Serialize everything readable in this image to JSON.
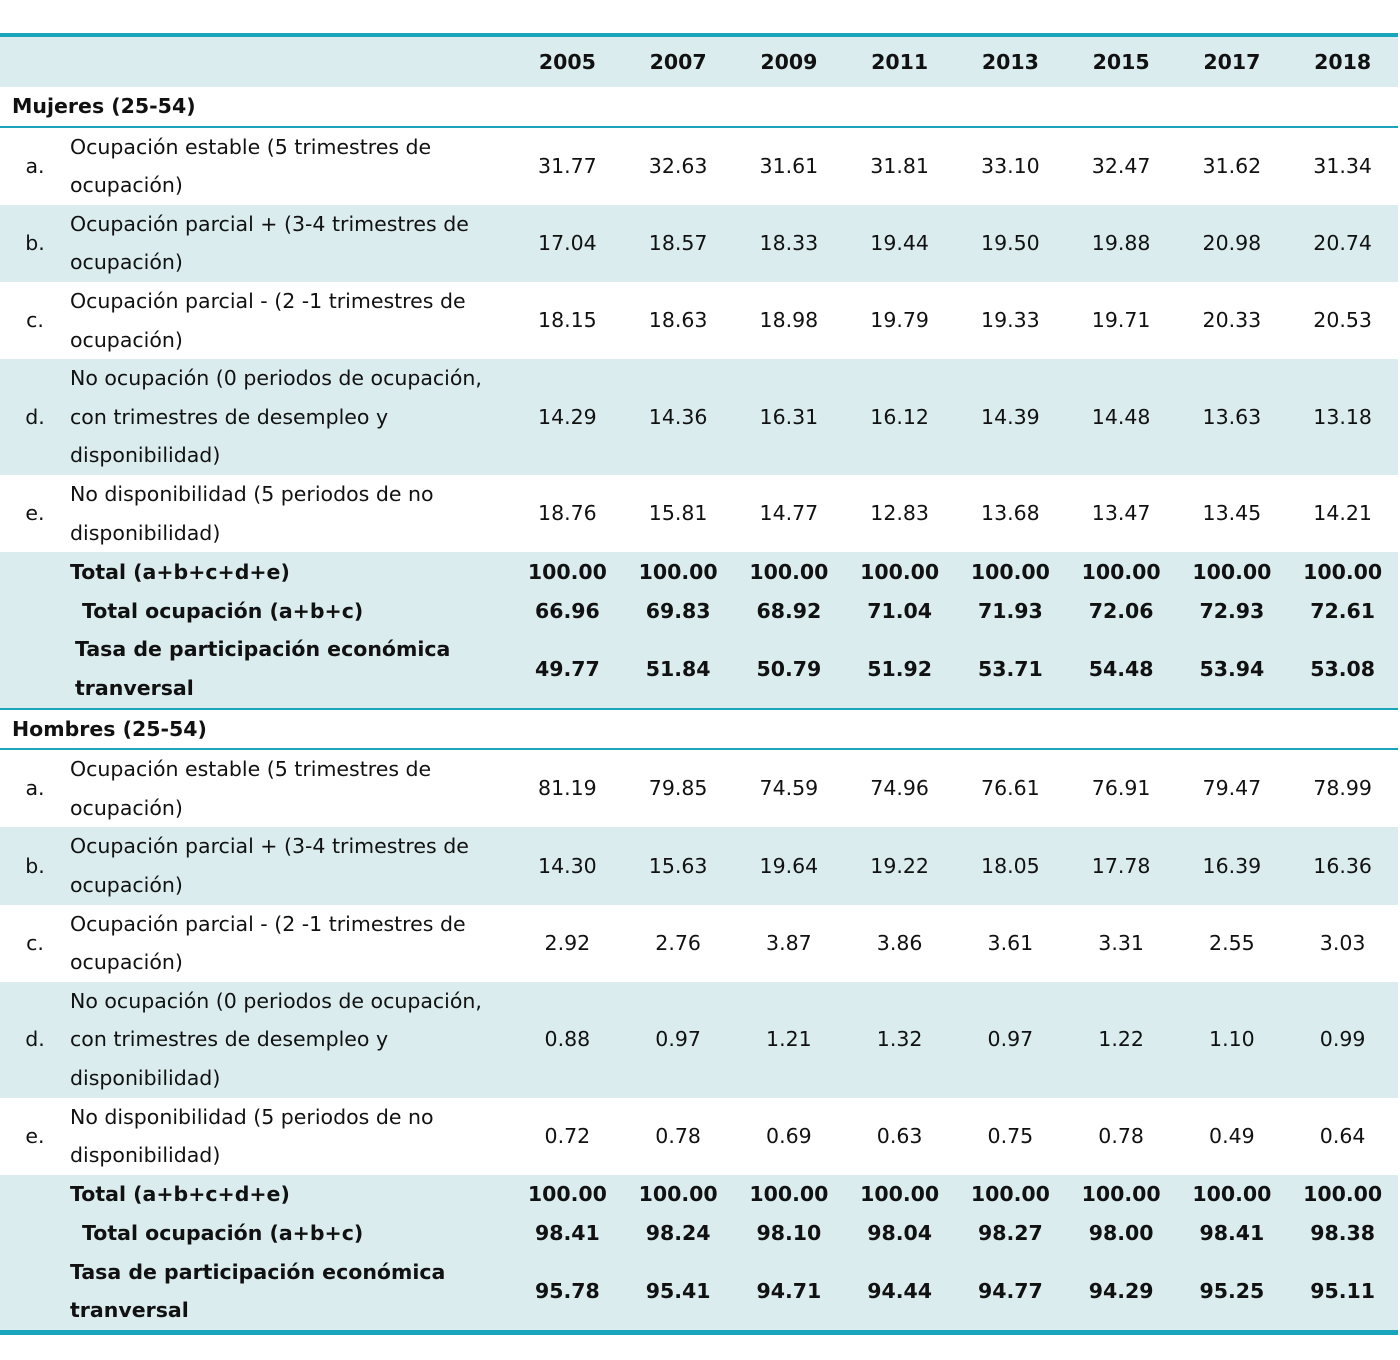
{
  "years": [
    "2005",
    "2007",
    "2009",
    "2011",
    "2013",
    "2015",
    "2017",
    "2018"
  ],
  "sections": [
    {
      "title": "Mujeres (25-54)",
      "rows": [
        {
          "letter": "a.",
          "label": "Ocupación estable (5 trimestres de ocupación)",
          "values": [
            "31.77",
            "32.63",
            "31.61",
            "31.81",
            "33.10",
            "32.47",
            "31.62",
            "31.34"
          ]
        },
        {
          "letter": "b.",
          "label": "Ocupación parcial + (3-4 trimestres de ocupación)",
          "values": [
            "17.04",
            "18.57",
            "18.33",
            "19.44",
            "19.50",
            "19.88",
            "20.98",
            "20.74"
          ]
        },
        {
          "letter": "c.",
          "label": "Ocupación parcial - (2 -1 trimestres de ocupación)",
          "values": [
            "18.15",
            "18.63",
            "18.98",
            "19.79",
            "19.33",
            "19.71",
            "20.33",
            "20.53"
          ]
        },
        {
          "letter": "d.",
          "label": "No ocupación (0 periodos de ocupación, con trimestres de desempleo y disponibilidad)",
          "values": [
            "14.29",
            "14.36",
            "16.31",
            "16.12",
            "14.39",
            "14.48",
            "13.63",
            "13.18"
          ]
        },
        {
          "letter": "e.",
          "label": "No disponibilidad (5 periodos de no disponibilidad)",
          "values": [
            "18.76",
            "15.81",
            "14.77",
            "12.83",
            "13.68",
            "13.47",
            "13.45",
            "14.21"
          ]
        }
      ],
      "totals": [
        {
          "label": "Total (a+b+c+d+e)",
          "values": [
            "100.00",
            "100.00",
            "100.00",
            "100.00",
            "100.00",
            "100.00",
            "100.00",
            "100.00"
          ]
        },
        {
          "label": "Total ocupación (a+b+c)",
          "values": [
            "66.96",
            "69.83",
            "68.92",
            "71.04",
            "71.93",
            "72.06",
            "72.93",
            "72.61"
          ]
        },
        {
          "label": "Tasa de participación económica tranversal",
          "values": [
            "49.77",
            "51.84",
            "50.79",
            "51.92",
            "53.71",
            "54.48",
            "53.94",
            "53.08"
          ]
        }
      ]
    },
    {
      "title": "Hombres (25-54)",
      "rows": [
        {
          "letter": "a.",
          "label": "Ocupación estable (5 trimestres de ocupación)",
          "values": [
            "81.19",
            "79.85",
            "74.59",
            "74.96",
            "76.61",
            "76.91",
            "79.47",
            "78.99"
          ]
        },
        {
          "letter": "b.",
          "label": "Ocupación parcial + (3-4 trimestres de ocupación)",
          "values": [
            "14.30",
            "15.63",
            "19.64",
            "19.22",
            "18.05",
            "17.78",
            "16.39",
            "16.36"
          ]
        },
        {
          "letter": "c.",
          "label": "Ocupación parcial - (2 -1 trimestres de ocupación)",
          "values": [
            "2.92",
            "2.76",
            "3.87",
            "3.86",
            "3.61",
            "3.31",
            "2.55",
            "3.03"
          ]
        },
        {
          "letter": "d.",
          "label": "No ocupación (0 periodos de ocupación, con trimestres de desempleo y disponibilidad)",
          "values": [
            "0.88",
            "0.97",
            "1.21",
            "1.32",
            "0.97",
            "1.22",
            "1.10",
            "0.99"
          ]
        },
        {
          "letter": "e.",
          "label": "No disponibilidad (5 periodos de no disponibilidad)",
          "values": [
            "0.72",
            "0.78",
            "0.69",
            "0.63",
            "0.75",
            "0.78",
            "0.49",
            "0.64"
          ]
        }
      ],
      "totals": [
        {
          "label": "Total (a+b+c+d+e)",
          "values": [
            "100.00",
            "100.00",
            "100.00",
            "100.00",
            "100.00",
            "100.00",
            "100.00",
            "100.00"
          ]
        },
        {
          "label": "Total ocupación (a+b+c)",
          "values": [
            "98.41",
            "98.24",
            "98.10",
            "98.04",
            "98.27",
            "98.00",
            "98.41",
            "98.38"
          ]
        },
        {
          "label": "Tasa de participación económica tranversal",
          "values": [
            "95.78",
            "95.41",
            "94.71",
            "94.44",
            "94.77",
            "94.29",
            "95.25",
            "95.11"
          ]
        }
      ]
    }
  ]
}
